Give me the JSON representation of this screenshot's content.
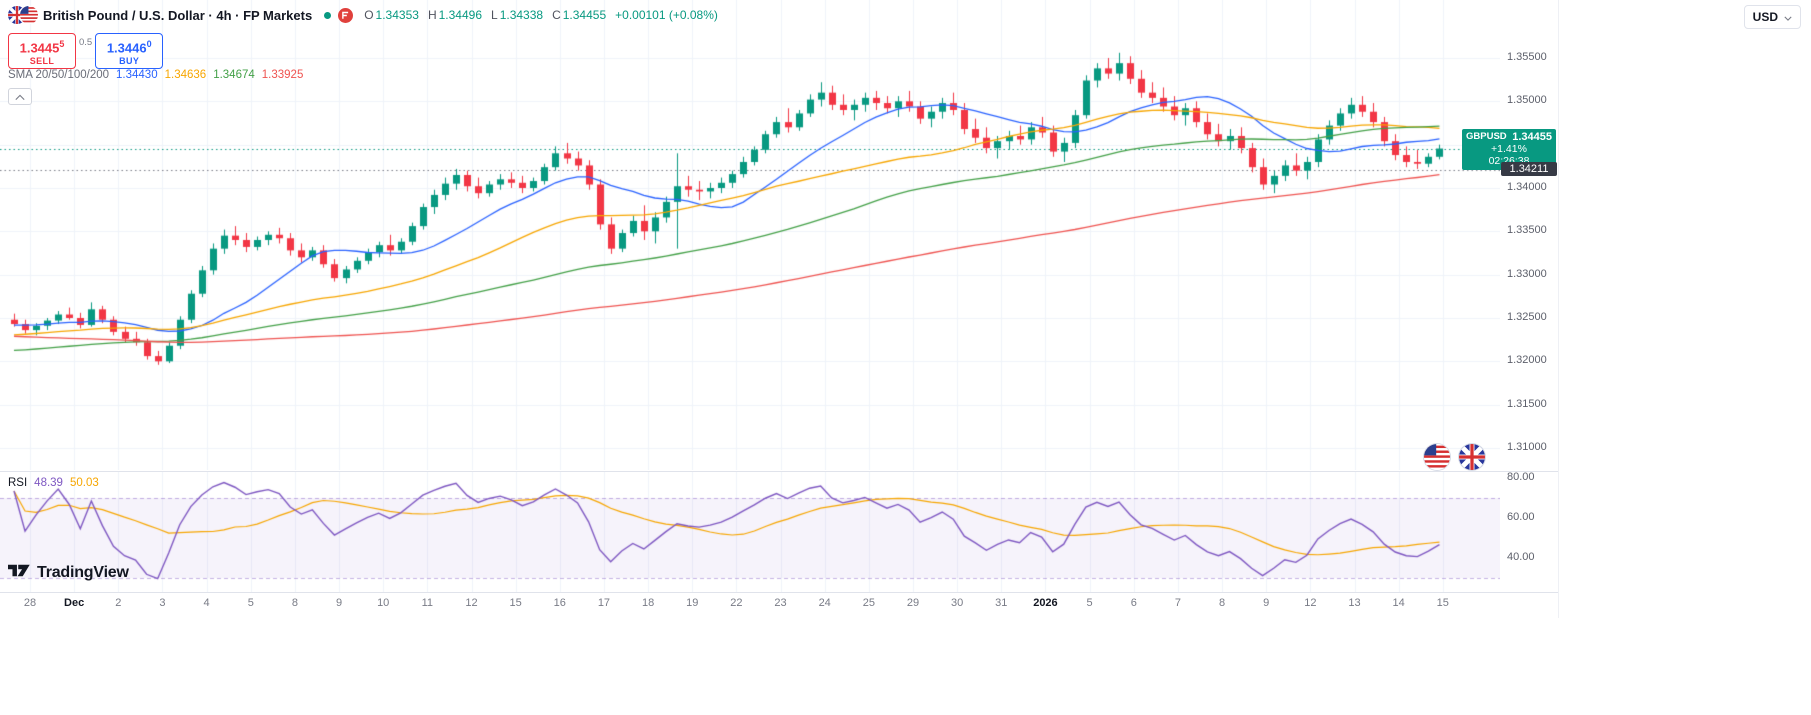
{
  "header": {
    "title": "British Pound / U.S. Dollar · 4h · FP Markets",
    "ohlc": {
      "o_label": "O",
      "o_value": "1.34353",
      "h_label": "H",
      "h_value": "1.34496",
      "l_label": "L",
      "l_value": "1.34338",
      "c_label": "C",
      "c_value": "1.34455",
      "change": "+0.00101 (+0.08%)"
    }
  },
  "currency_selector": {
    "label": "USD"
  },
  "order_panel": {
    "sell_price": "1.3445",
    "sell_sup": "5",
    "sell_label": "SELL",
    "spread": "0.5",
    "buy_price": "1.3446",
    "buy_sup": "0",
    "buy_label": "BUY"
  },
  "sma_legend": {
    "label": "SMA 20/50/100/200",
    "values": [
      {
        "text": "1.34430",
        "color": "#2962ff"
      },
      {
        "text": "1.34636",
        "color": "#f7a600"
      },
      {
        "text": "1.34674",
        "color": "#43a047"
      },
      {
        "text": "1.33925",
        "color": "#ef5350"
      }
    ]
  },
  "rsi_legend": {
    "label": "RSI",
    "value": "48.39",
    "signal": "50.03",
    "value_color": "#7e57c2",
    "signal_color": "#f7a600"
  },
  "price_badges": {
    "last": {
      "symbol": "GBPUSD",
      "price": "1.34455",
      "change_pct": "+1.41%",
      "countdown": "02:26:38",
      "bg": "#089981"
    },
    "secondary": {
      "price": "1.34211",
      "bg": "#363a45"
    }
  },
  "branding": {
    "logo_text": "TradingView"
  },
  "chart_data": {
    "type": "candlestick",
    "title": "British Pound / U.S. Dollar",
    "symbol": "GBPUSD",
    "interval": "4h",
    "provider": "FP Markets",
    "up_color": "#089981",
    "down_color": "#f23645",
    "y_axis": {
      "min": 1.30746,
      "max": 1.36169,
      "grid_step": 0.005,
      "grid_from": 1.31,
      "grid_to": 1.355
    },
    "price_axis_labels": [
      "1.35500",
      "1.35000",
      "1.34000",
      "1.33500",
      "1.33000",
      "1.32500",
      "1.32000",
      "1.31500",
      "1.31000"
    ],
    "time_labels": [
      {
        "text": "28"
      },
      {
        "text": "Dec",
        "bold": true
      },
      {
        "text": "2"
      },
      {
        "text": "3"
      },
      {
        "text": "4"
      },
      {
        "text": "5"
      },
      {
        "text": "8"
      },
      {
        "text": "9"
      },
      {
        "text": "10"
      },
      {
        "text": "11"
      },
      {
        "text": "12"
      },
      {
        "text": "15"
      },
      {
        "text": "16"
      },
      {
        "text": "17"
      },
      {
        "text": "18"
      },
      {
        "text": "19"
      },
      {
        "text": "22"
      },
      {
        "text": "23"
      },
      {
        "text": "24"
      },
      {
        "text": "25"
      },
      {
        "text": "29"
      },
      {
        "text": "30"
      },
      {
        "text": "31"
      },
      {
        "text": "2026",
        "bold": true
      },
      {
        "text": "5"
      },
      {
        "text": "6"
      },
      {
        "text": "7"
      },
      {
        "text": "8"
      },
      {
        "text": "9"
      },
      {
        "text": "12"
      },
      {
        "text": "13"
      },
      {
        "text": "14"
      },
      {
        "text": "15"
      }
    ],
    "candles": [
      [
        1.3248,
        1.3255,
        1.324,
        1.3243
      ],
      [
        1.3243,
        1.3248,
        1.3232,
        1.3236
      ],
      [
        1.3236,
        1.3244,
        1.323,
        1.3241
      ],
      [
        1.3241,
        1.325,
        1.3236,
        1.3247
      ],
      [
        1.3247,
        1.3258,
        1.3243,
        1.3254
      ],
      [
        1.3254,
        1.3262,
        1.3248,
        1.325
      ],
      [
        1.325,
        1.3256,
        1.3238,
        1.3242
      ],
      [
        1.3242,
        1.3268,
        1.324,
        1.326
      ],
      [
        1.326,
        1.3264,
        1.3244,
        1.3248
      ],
      [
        1.3248,
        1.3252,
        1.323,
        1.3234
      ],
      [
        1.3234,
        1.324,
        1.3222,
        1.3226
      ],
      [
        1.3226,
        1.3234,
        1.3218,
        1.3222
      ],
      [
        1.3222,
        1.3226,
        1.3202,
        1.3206
      ],
      [
        1.3206,
        1.3212,
        1.3196,
        1.32
      ],
      [
        1.32,
        1.3222,
        1.3198,
        1.3218
      ],
      [
        1.3218,
        1.3252,
        1.3214,
        1.3248
      ],
      [
        1.3248,
        1.3282,
        1.3244,
        1.3278
      ],
      [
        1.3278,
        1.331,
        1.3274,
        1.3305
      ],
      [
        1.3305,
        1.3336,
        1.33,
        1.333
      ],
      [
        1.333,
        1.3352,
        1.3324,
        1.3345
      ],
      [
        1.3345,
        1.3356,
        1.3334,
        1.334
      ],
      [
        1.334,
        1.3348,
        1.3326,
        1.3332
      ],
      [
        1.3332,
        1.3344,
        1.3328,
        1.334
      ],
      [
        1.334,
        1.335,
        1.3334,
        1.3346
      ],
      [
        1.3346,
        1.3354,
        1.3336,
        1.3342
      ],
      [
        1.3342,
        1.3348,
        1.3322,
        1.3328
      ],
      [
        1.3328,
        1.3336,
        1.3314,
        1.332
      ],
      [
        1.332,
        1.3332,
        1.3316,
        1.3328
      ],
      [
        1.3328,
        1.3334,
        1.3308,
        1.3312
      ],
      [
        1.3312,
        1.3318,
        1.3292,
        1.3296
      ],
      [
        1.3296,
        1.331,
        1.329,
        1.3306
      ],
      [
        1.3306,
        1.332,
        1.3302,
        1.3316
      ],
      [
        1.3316,
        1.333,
        1.3312,
        1.3326
      ],
      [
        1.3326,
        1.3338,
        1.332,
        1.3334
      ],
      [
        1.3334,
        1.3346,
        1.3322,
        1.3328
      ],
      [
        1.3328,
        1.3342,
        1.3324,
        1.3338
      ],
      [
        1.3338,
        1.336,
        1.3334,
        1.3356
      ],
      [
        1.3356,
        1.3382,
        1.3352,
        1.3378
      ],
      [
        1.3378,
        1.3398,
        1.337,
        1.3392
      ],
      [
        1.3392,
        1.3412,
        1.3386,
        1.3405
      ],
      [
        1.3405,
        1.3422,
        1.3398,
        1.3415
      ],
      [
        1.3415,
        1.342,
        1.3396,
        1.3402
      ],
      [
        1.3402,
        1.3412,
        1.3388,
        1.3394
      ],
      [
        1.3394,
        1.3408,
        1.339,
        1.3404
      ],
      [
        1.3404,
        1.3416,
        1.3398,
        1.341
      ],
      [
        1.341,
        1.3418,
        1.34,
        1.3406
      ],
      [
        1.3406,
        1.3414,
        1.3394,
        1.34
      ],
      [
        1.34,
        1.3412,
        1.3396,
        1.3408
      ],
      [
        1.3408,
        1.3428,
        1.3404,
        1.3424
      ],
      [
        1.3424,
        1.3448,
        1.342,
        1.344
      ],
      [
        1.344,
        1.3452,
        1.3428,
        1.3434
      ],
      [
        1.3434,
        1.3442,
        1.342,
        1.3426
      ],
      [
        1.3426,
        1.3432,
        1.3398,
        1.3404
      ],
      [
        1.3404,
        1.341,
        1.3352,
        1.3358
      ],
      [
        1.3358,
        1.3366,
        1.3324,
        1.333
      ],
      [
        1.333,
        1.3352,
        1.3326,
        1.3348
      ],
      [
        1.3348,
        1.3368,
        1.3344,
        1.3362
      ],
      [
        1.3362,
        1.338,
        1.334,
        1.335
      ],
      [
        1.335,
        1.3372,
        1.3336,
        1.3366
      ],
      [
        1.3366,
        1.339,
        1.336,
        1.3384
      ],
      [
        1.3384,
        1.344,
        1.333,
        1.3402
      ],
      [
        1.3402,
        1.3414,
        1.339,
        1.3398
      ],
      [
        1.3398,
        1.3408,
        1.3386,
        1.3396
      ],
      [
        1.3396,
        1.3406,
        1.3388,
        1.34
      ],
      [
        1.34,
        1.3412,
        1.3394,
        1.3406
      ],
      [
        1.3406,
        1.342,
        1.34,
        1.3416
      ],
      [
        1.3416,
        1.3436,
        1.3412,
        1.343
      ],
      [
        1.343,
        1.3448,
        1.3426,
        1.3444
      ],
      [
        1.3444,
        1.3466,
        1.344,
        1.3462
      ],
      [
        1.3462,
        1.3482,
        1.3458,
        1.3476
      ],
      [
        1.3476,
        1.3492,
        1.3464,
        1.347
      ],
      [
        1.347,
        1.349,
        1.3466,
        1.3486
      ],
      [
        1.3486,
        1.3508,
        1.3482,
        1.3502
      ],
      [
        1.3502,
        1.3522,
        1.3494,
        1.351
      ],
      [
        1.351,
        1.3518,
        1.349,
        1.3496
      ],
      [
        1.3496,
        1.3508,
        1.3484,
        1.349
      ],
      [
        1.349,
        1.3502,
        1.3478,
        1.3496
      ],
      [
        1.3496,
        1.351,
        1.3488,
        1.3504
      ],
      [
        1.3504,
        1.3512,
        1.349,
        1.3498
      ],
      [
        1.3498,
        1.3506,
        1.3486,
        1.3492
      ],
      [
        1.3492,
        1.3506,
        1.3482,
        1.35
      ],
      [
        1.35,
        1.3512,
        1.3488,
        1.3494
      ],
      [
        1.3494,
        1.35,
        1.3474,
        1.348
      ],
      [
        1.348,
        1.3494,
        1.347,
        1.3488
      ],
      [
        1.3488,
        1.3504,
        1.348,
        1.3498
      ],
      [
        1.3498,
        1.351,
        1.3484,
        1.349
      ],
      [
        1.349,
        1.3498,
        1.3462,
        1.3468
      ],
      [
        1.3468,
        1.348,
        1.3452,
        1.3458
      ],
      [
        1.3458,
        1.347,
        1.344,
        1.3446
      ],
      [
        1.3446,
        1.346,
        1.3434,
        1.3454
      ],
      [
        1.3454,
        1.3466,
        1.3444,
        1.346
      ],
      [
        1.346,
        1.3472,
        1.345,
        1.3456
      ],
      [
        1.3456,
        1.3476,
        1.345,
        1.347
      ],
      [
        1.347,
        1.3482,
        1.3458,
        1.3464
      ],
      [
        1.3464,
        1.3472,
        1.3436,
        1.3442
      ],
      [
        1.3442,
        1.3458,
        1.343,
        1.3452
      ],
      [
        1.3452,
        1.349,
        1.3446,
        1.3484
      ],
      [
        1.3484,
        1.353,
        1.348,
        1.3524
      ],
      [
        1.3524,
        1.3544,
        1.3516,
        1.3538
      ],
      [
        1.3538,
        1.355,
        1.3526,
        1.3532
      ],
      [
        1.3532,
        1.3556,
        1.3524,
        1.3544
      ],
      [
        1.3544,
        1.3552,
        1.352,
        1.3526
      ],
      [
        1.3526,
        1.3536,
        1.3504,
        1.351
      ],
      [
        1.351,
        1.3522,
        1.3498,
        1.3504
      ],
      [
        1.3504,
        1.3516,
        1.3488,
        1.3494
      ],
      [
        1.3494,
        1.3506,
        1.3478,
        1.3484
      ],
      [
        1.3484,
        1.3498,
        1.3472,
        1.3492
      ],
      [
        1.3492,
        1.35,
        1.347,
        1.3476
      ],
      [
        1.3476,
        1.3486,
        1.3456,
        1.3462
      ],
      [
        1.3462,
        1.3474,
        1.3448,
        1.3454
      ],
      [
        1.3454,
        1.3468,
        1.3444,
        1.346
      ],
      [
        1.346,
        1.347,
        1.344,
        1.3446
      ],
      [
        1.3446,
        1.3452,
        1.3418,
        1.3424
      ],
      [
        1.3424,
        1.3434,
        1.3398,
        1.3404
      ],
      [
        1.3404,
        1.342,
        1.3394,
        1.3414
      ],
      [
        1.3414,
        1.3432,
        1.3408,
        1.3426
      ],
      [
        1.3426,
        1.344,
        1.3414,
        1.342
      ],
      [
        1.342,
        1.3436,
        1.341,
        1.343
      ],
      [
        1.343,
        1.3462,
        1.3424,
        1.3456
      ],
      [
        1.3456,
        1.3478,
        1.345,
        1.3472
      ],
      [
        1.3472,
        1.3492,
        1.3466,
        1.3486
      ],
      [
        1.3486,
        1.3504,
        1.348,
        1.3496
      ],
      [
        1.3496,
        1.3506,
        1.3482,
        1.3488
      ],
      [
        1.3488,
        1.3498,
        1.347,
        1.3476
      ],
      [
        1.3476,
        1.3482,
        1.3448,
        1.3454
      ],
      [
        1.3454,
        1.3462,
        1.3432,
        1.3438
      ],
      [
        1.3438,
        1.3448,
        1.3424,
        1.343
      ],
      [
        1.343,
        1.3444,
        1.3422,
        1.3428
      ],
      [
        1.3428,
        1.344,
        1.3424,
        1.3436
      ],
      [
        1.3436,
        1.345,
        1.3433,
        1.34455
      ]
    ],
    "overlays": {
      "sma": {
        "periods": [
          20,
          50,
          100,
          200
        ],
        "colors": [
          "#2962ff",
          "#f7a600",
          "#43a047",
          "#ef5350"
        ],
        "current_values": [
          1.3443,
          1.34636,
          1.34674,
          1.33925
        ]
      },
      "price_lines": [
        {
          "value": 1.34455,
          "color": "#089981"
        },
        {
          "value": 1.34211,
          "color": "#787b86"
        }
      ]
    },
    "rsi": {
      "period": 14,
      "current": 48.39,
      "signal_current": 50.03,
      "bands": [
        70,
        30
      ],
      "scale_min": 23,
      "scale_max": 83,
      "axis_labels": [
        "80.00",
        "60.00",
        "40.00"
      ],
      "line_color": "#7e57c2",
      "signal_color": "#f7a600",
      "band_fill": "rgba(126,87,194,0.07)",
      "band_line_color": "rgba(126,87,194,0.45)"
    }
  }
}
